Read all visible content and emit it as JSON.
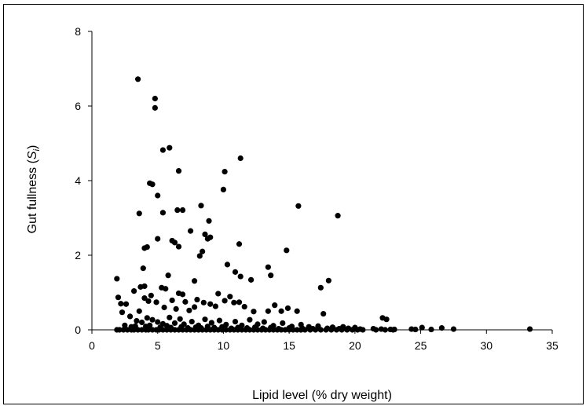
{
  "chart_data": {
    "type": "scatter",
    "xlabel": "Lipid level (% dry weight)",
    "ylabel": {
      "prefix": "Gut fullness (",
      "var": "S",
      "sub": "i",
      "suffix": ")"
    },
    "xlim": [
      0,
      35
    ],
    "ylim": [
      0,
      8
    ],
    "xticks": [
      0,
      5,
      10,
      15,
      20,
      25,
      30,
      35
    ],
    "yticks": [
      0,
      2,
      4,
      6,
      8
    ],
    "grid": false,
    "marker_color": "#000000",
    "points": [
      [
        3.5,
        6.72
      ],
      [
        4.8,
        6.2
      ],
      [
        4.8,
        5.95
      ],
      [
        5.9,
        4.88
      ],
      [
        5.4,
        4.82
      ],
      [
        11.3,
        4.6
      ],
      [
        6.6,
        4.26
      ],
      [
        10.1,
        4.24
      ],
      [
        4.4,
        3.93
      ],
      [
        4.6,
        3.9
      ],
      [
        10.0,
        3.76
      ],
      [
        5.0,
        3.6
      ],
      [
        8.3,
        3.33
      ],
      [
        15.7,
        3.32
      ],
      [
        6.5,
        3.21
      ],
      [
        6.9,
        3.21
      ],
      [
        3.6,
        3.12
      ],
      [
        5.4,
        3.14
      ],
      [
        18.7,
        3.06
      ],
      [
        8.9,
        2.92
      ],
      [
        7.5,
        2.65
      ],
      [
        8.6,
        2.56
      ],
      [
        9.0,
        2.48
      ],
      [
        8.8,
        2.44
      ],
      [
        5.0,
        2.44
      ],
      [
        6.1,
        2.39
      ],
      [
        6.3,
        2.34
      ],
      [
        11.2,
        2.3
      ],
      [
        6.6,
        2.23
      ],
      [
        4.0,
        2.19
      ],
      [
        4.2,
        2.22
      ],
      [
        14.8,
        2.13
      ],
      [
        8.4,
        2.1
      ],
      [
        8.2,
        1.98
      ],
      [
        10.3,
        1.75
      ],
      [
        13.4,
        1.68
      ],
      [
        3.9,
        1.65
      ],
      [
        10.9,
        1.55
      ],
      [
        11.3,
        1.43
      ],
      [
        5.8,
        1.46
      ],
      [
        13.6,
        1.46
      ],
      [
        1.9,
        1.37
      ],
      [
        12.1,
        1.34
      ],
      [
        18.0,
        1.32
      ],
      [
        7.8,
        1.31
      ],
      [
        3.7,
        1.15
      ],
      [
        4.0,
        1.17
      ],
      [
        5.3,
        1.13
      ],
      [
        5.6,
        1.1
      ],
      [
        17.4,
        1.13
      ],
      [
        3.2,
        1.04
      ],
      [
        6.6,
        0.98
      ],
      [
        6.9,
        0.95
      ],
      [
        9.6,
        0.97
      ],
      [
        2.0,
        0.87
      ],
      [
        2.2,
        0.7
      ],
      [
        2.6,
        0.69
      ],
      [
        3.6,
        0.5
      ],
      [
        4.0,
        0.85
      ],
      [
        4.3,
        0.77
      ],
      [
        4.5,
        0.92
      ],
      [
        4.9,
        0.74
      ],
      [
        5.5,
        0.6
      ],
      [
        6.1,
        0.79
      ],
      [
        6.4,
        0.56
      ],
      [
        7.1,
        0.75
      ],
      [
        7.4,
        0.52
      ],
      [
        7.8,
        0.61
      ],
      [
        8.0,
        0.81
      ],
      [
        8.5,
        0.73
      ],
      [
        9.0,
        0.69
      ],
      [
        9.4,
        0.63
      ],
      [
        10.1,
        0.78
      ],
      [
        10.5,
        0.89
      ],
      [
        10.8,
        0.73
      ],
      [
        11.2,
        0.74
      ],
      [
        11.6,
        0.62
      ],
      [
        12.3,
        0.49
      ],
      [
        13.4,
        0.5
      ],
      [
        13.9,
        0.66
      ],
      [
        14.4,
        0.5
      ],
      [
        14.9,
        0.58
      ],
      [
        15.6,
        0.5
      ],
      [
        17.6,
        0.43
      ],
      [
        22.1,
        0.32
      ],
      [
        22.4,
        0.28
      ],
      [
        2.3,
        0.47
      ],
      [
        2.9,
        0.36
      ],
      [
        3.4,
        0.24
      ],
      [
        3.8,
        0.2
      ],
      [
        4.2,
        0.32
      ],
      [
        4.6,
        0.27
      ],
      [
        5.0,
        0.21
      ],
      [
        5.4,
        0.16
      ],
      [
        5.9,
        0.33
      ],
      [
        6.3,
        0.18
      ],
      [
        6.7,
        0.29
      ],
      [
        7.0,
        0.15
      ],
      [
        7.6,
        0.22
      ],
      [
        8.1,
        0.12
      ],
      [
        8.6,
        0.28
      ],
      [
        9.1,
        0.19
      ],
      [
        9.7,
        0.25
      ],
      [
        10.2,
        0.14
      ],
      [
        10.9,
        0.22
      ],
      [
        11.4,
        0.12
      ],
      [
        12.0,
        0.27
      ],
      [
        12.6,
        0.15
      ],
      [
        13.1,
        0.21
      ],
      [
        13.8,
        0.11
      ],
      [
        14.5,
        0.18
      ],
      [
        15.2,
        0.09
      ],
      [
        15.9,
        0.14
      ],
      [
        16.5,
        0.08
      ],
      [
        17.2,
        0.1
      ],
      [
        18.3,
        0.07
      ],
      [
        19.1,
        0.08
      ],
      [
        20.0,
        0.06
      ],
      [
        2.5,
        0.12
      ],
      [
        3.0,
        0.08
      ],
      [
        3.3,
        0.1
      ],
      [
        4.1,
        0.09
      ],
      [
        4.4,
        0.12
      ],
      [
        5.2,
        0.07
      ],
      [
        5.7,
        0.11
      ],
      [
        6.0,
        0.06
      ],
      [
        6.8,
        0.08
      ],
      [
        7.3,
        0.05
      ],
      [
        7.9,
        0.07
      ],
      [
        8.3,
        0.05
      ],
      [
        8.8,
        0.09
      ],
      [
        9.3,
        0.06
      ],
      [
        9.9,
        0.08
      ],
      [
        10.6,
        0.04
      ],
      [
        11.1,
        0.06
      ],
      [
        11.8,
        0.05
      ],
      [
        12.4,
        0.07
      ],
      [
        13.0,
        0.04
      ],
      [
        13.6,
        0.06
      ],
      [
        14.2,
        0.03
      ],
      [
        15.0,
        0.05
      ],
      [
        16.0,
        0.04
      ],
      [
        16.8,
        0.03
      ],
      [
        17.9,
        0.04
      ],
      [
        18.8,
        0.03
      ],
      [
        19.5,
        0.04
      ],
      [
        20.4,
        0.02
      ],
      [
        21.4,
        0.03
      ],
      [
        22.0,
        0.02
      ],
      [
        22.7,
        0.01
      ],
      [
        23.0,
        0.01
      ],
      [
        24.3,
        0.02
      ],
      [
        24.6,
        0.01
      ],
      [
        25.1,
        0.06
      ],
      [
        25.8,
        0.01
      ],
      [
        26.6,
        0.05
      ],
      [
        27.5,
        0.02
      ],
      [
        33.3,
        0.02
      ],
      [
        1.9,
        0.0
      ],
      [
        2.1,
        0.0
      ],
      [
        2.4,
        0.0
      ],
      [
        2.7,
        0.0
      ],
      [
        3.0,
        0.0
      ],
      [
        3.2,
        0.0
      ],
      [
        3.5,
        0.0
      ],
      [
        3.8,
        0.0
      ],
      [
        4.1,
        0.0
      ],
      [
        4.3,
        0.0
      ],
      [
        4.6,
        0.0
      ],
      [
        4.9,
        0.0
      ],
      [
        5.1,
        0.0
      ],
      [
        5.4,
        0.0
      ],
      [
        5.7,
        0.0
      ],
      [
        6.0,
        0.0
      ],
      [
        6.3,
        0.0
      ],
      [
        6.6,
        0.0
      ],
      [
        6.9,
        0.0
      ],
      [
        7.2,
        0.0
      ],
      [
        7.5,
        0.0
      ],
      [
        7.8,
        0.0
      ],
      [
        8.1,
        0.0
      ],
      [
        8.4,
        0.0
      ],
      [
        8.7,
        0.0
      ],
      [
        9.0,
        0.0
      ],
      [
        9.3,
        0.0
      ],
      [
        9.6,
        0.0
      ],
      [
        9.9,
        0.0
      ],
      [
        10.2,
        0.0
      ],
      [
        10.5,
        0.0
      ],
      [
        10.8,
        0.0
      ],
      [
        11.1,
        0.0
      ],
      [
        11.4,
        0.0
      ],
      [
        11.7,
        0.0
      ],
      [
        12.0,
        0.0
      ],
      [
        12.3,
        0.0
      ],
      [
        12.6,
        0.0
      ],
      [
        12.9,
        0.0
      ],
      [
        13.2,
        0.0
      ],
      [
        13.5,
        0.0
      ],
      [
        13.8,
        0.0
      ],
      [
        14.1,
        0.0
      ],
      [
        14.4,
        0.0
      ],
      [
        14.7,
        0.0
      ],
      [
        15.0,
        0.0
      ],
      [
        15.3,
        0.0
      ],
      [
        15.6,
        0.0
      ],
      [
        15.9,
        0.0
      ],
      [
        16.2,
        0.0
      ],
      [
        16.6,
        0.0
      ],
      [
        17.0,
        0.0
      ],
      [
        17.4,
        0.0
      ],
      [
        17.8,
        0.0
      ],
      [
        18.2,
        0.0
      ],
      [
        18.6,
        0.0
      ],
      [
        19.0,
        0.0
      ],
      [
        19.4,
        0.0
      ],
      [
        19.8,
        0.0
      ],
      [
        20.2,
        0.0
      ],
      [
        20.6,
        0.0
      ],
      [
        21.6,
        0.0
      ],
      [
        22.3,
        0.0
      ],
      [
        22.9,
        0.0
      ]
    ]
  }
}
